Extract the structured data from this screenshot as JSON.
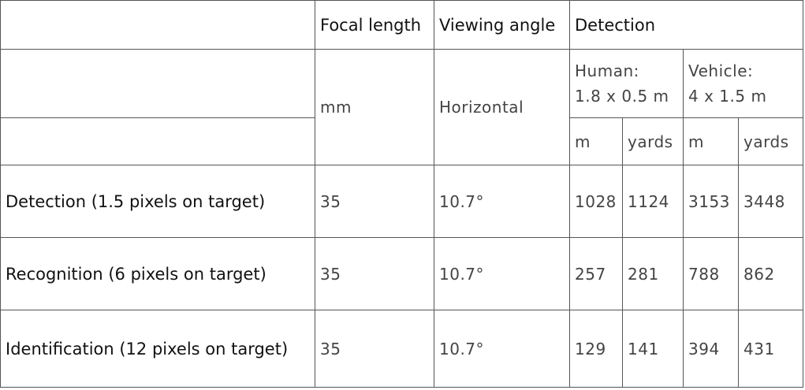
{
  "header": {
    "focal_length": "Focal length",
    "viewing_angle": "Viewing angle",
    "detection": "Detection"
  },
  "subheader": {
    "mm": "mm",
    "horizontal": "Horizontal",
    "human_line1": "Human:",
    "human_line2": "1.8 x 0.5 m",
    "vehicle_line1": "Vehicle:",
    "vehicle_line2": "4 x 1.5 m",
    "unit_m_1": "m",
    "unit_yards_1": "yards",
    "unit_m_2": "m",
    "unit_yards_2": "yards"
  },
  "rows": [
    {
      "label": "Detection (1.5 pixels on target)",
      "focal": "35",
      "angle": "10.7°",
      "human_m": "1028",
      "human_yards": "1124",
      "vehicle_m": "3153",
      "vehicle_yards": "3448"
    },
    {
      "label": "Recognition (6 pixels on target)",
      "focal": "35",
      "angle": "10.7°",
      "human_m": "257",
      "human_yards": "281",
      "vehicle_m": "788",
      "vehicle_yards": "862"
    },
    {
      "label": "Identification (12 pixels on target)",
      "focal": "35",
      "angle": "10.7°",
      "human_m": "129",
      "human_yards": "141",
      "vehicle_m": "394",
      "vehicle_yards": "431"
    }
  ]
}
